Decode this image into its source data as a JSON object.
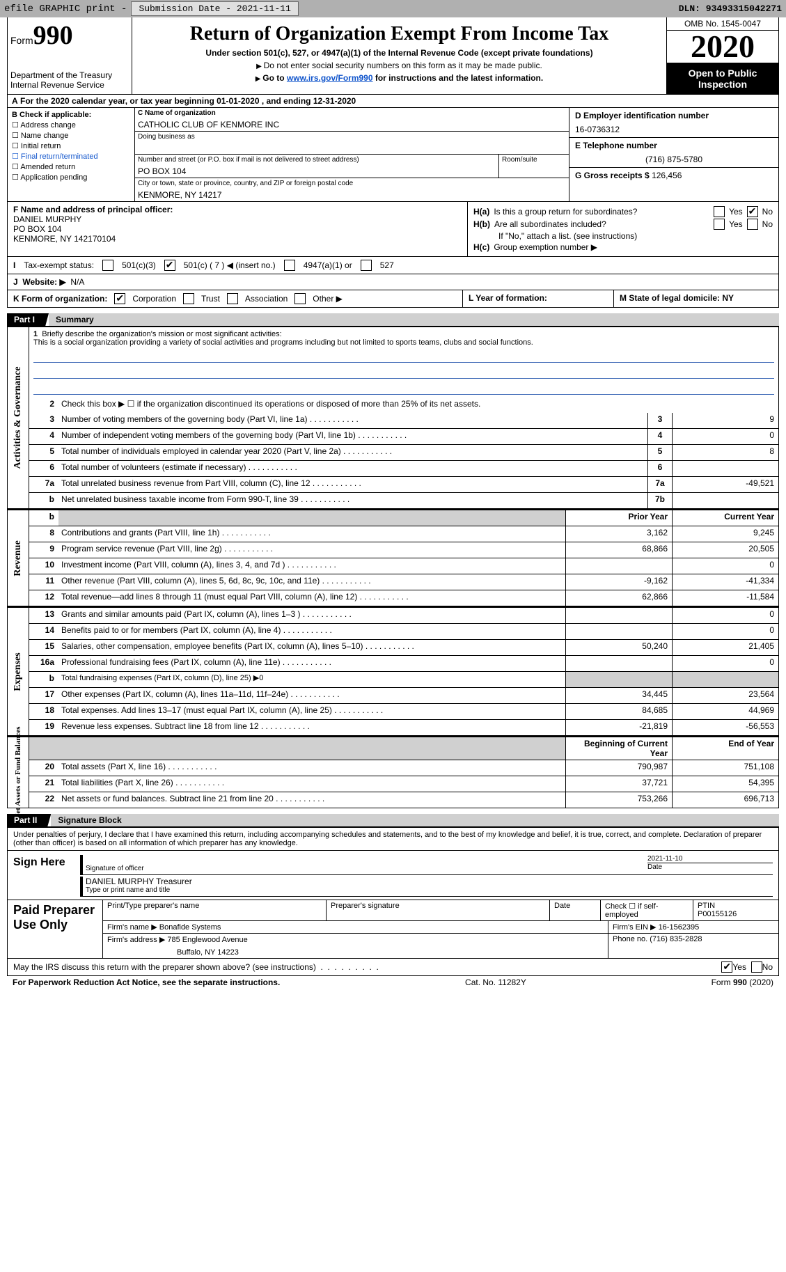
{
  "topbar": {
    "efile": "efile GRAPHIC print - ",
    "submission": "Submission Date - 2021-11-11",
    "dln": "DLN: 93493315042271"
  },
  "header": {
    "form_word": "Form",
    "form_num": "990",
    "title": "Return of Organization Exempt From Income Tax",
    "sub": "Under section 501(c), 527, or 4947(a)(1) of the Internal Revenue Code (except private foundations)",
    "note1": "Do not enter social security numbers on this form as it may be made public.",
    "note2_pre": "Go to ",
    "note2_link": "www.irs.gov/Form990",
    "note2_post": " for instructions and the latest information.",
    "dept": "Department of the Treasury\nInternal Revenue Service",
    "omb": "OMB No. 1545-0047",
    "year": "2020",
    "otp": "Open to Public Inspection"
  },
  "rowA": "For the 2020 calendar year, or tax year beginning 01-01-2020    , and ending 12-31-2020",
  "B": {
    "hdr": "B Check if applicable:",
    "opts": [
      "Address change",
      "Name change",
      "Initial return",
      "Final return/terminated",
      "Amended return",
      "Application pending"
    ]
  },
  "C": {
    "lbl": "C Name of organization",
    "val": "CATHOLIC CLUB OF KENMORE INC",
    "dba": "Doing business as",
    "addr_lbl": "Number and street (or P.O. box if mail is not delivered to street address)",
    "room": "Room/suite",
    "addr": "PO BOX 104",
    "city_lbl": "City or town, state or province, country, and ZIP or foreign postal code",
    "city": "KENMORE, NY  14217"
  },
  "D": {
    "lbl": "D Employer identification number",
    "val": "16-0736312"
  },
  "E": {
    "lbl": "E Telephone number",
    "val": "(716) 875-5780"
  },
  "G": {
    "lbl": "G Gross receipts $",
    "val": "126,456"
  },
  "F": {
    "lbl": "F  Name and address of principal officer:",
    "name": "DANIEL MURPHY",
    "addr1": "PO BOX 104",
    "addr2": "KENMORE, NY  142170104"
  },
  "H": {
    "a": "Is this a group return for subordinates?",
    "b": "Are all subordinates included?",
    "b_note": "If \"No,\" attach a list. (see instructions)",
    "c": "Group exemption number ▶",
    "yes": "Yes",
    "no": "No",
    "Ha": "H(a)",
    "Hb": "H(b)",
    "Hc": "H(c)"
  },
  "I": {
    "lbl": "Tax-exempt status:",
    "o1": "501(c)(3)",
    "o2": "501(c) ( 7 ) ◀ (insert no.)",
    "o3": "4947(a)(1) or",
    "o4": "527"
  },
  "J": {
    "lbl": "Website: ▶",
    "val": "N/A"
  },
  "K": {
    "lbl": "K Form of organization:",
    "o1": "Corporation",
    "o2": "Trust",
    "o3": "Association",
    "o4": "Other ▶"
  },
  "L": {
    "lbl": "L Year of formation:"
  },
  "M": {
    "lbl": "M State of legal domicile: NY"
  },
  "parts": {
    "p1": "Part I",
    "p1t": "Summary",
    "p2": "Part II",
    "p2t": "Signature Block"
  },
  "mission": {
    "num": "1",
    "lbl": "Briefly describe the organization's mission or most significant activities:",
    "txt": "This is a social organization providing a variety of social activities and programs including but not limited to sports teams, clubs and social functions."
  },
  "line2": {
    "num": "2",
    "txt": "Check this box ▶ ☐  if the organization discontinued its operations or disposed of more than 25% of its net assets."
  },
  "sideLabels": {
    "gov": "Activities & Governance",
    "rev": "Revenue",
    "exp": "Expenses",
    "net": "Net Assets or Fund Balances"
  },
  "cols": {
    "prior": "Prior Year",
    "curr": "Current Year",
    "boy": "Beginning of Current Year",
    "eoy": "End of Year"
  },
  "gov": [
    {
      "n": "3",
      "t": "Number of voting members of the governing body (Part VI, line 1a)",
      "b": "3",
      "v": "9"
    },
    {
      "n": "4",
      "t": "Number of independent voting members of the governing body (Part VI, line 1b)",
      "b": "4",
      "v": "0"
    },
    {
      "n": "5",
      "t": "Total number of individuals employed in calendar year 2020 (Part V, line 2a)",
      "b": "5",
      "v": "8"
    },
    {
      "n": "6",
      "t": "Total number of volunteers (estimate if necessary)",
      "b": "6",
      "v": ""
    },
    {
      "n": "7a",
      "t": "Total unrelated business revenue from Part VIII, column (C), line 12",
      "b": "7a",
      "v": "-49,521"
    },
    {
      "n": "b",
      "t": "Net unrelated business taxable income from Form 990-T, line 39",
      "b": "7b",
      "v": ""
    }
  ],
  "rev": [
    {
      "n": "8",
      "t": "Contributions and grants (Part VIII, line 1h)",
      "p": "3,162",
      "c": "9,245"
    },
    {
      "n": "9",
      "t": "Program service revenue (Part VIII, line 2g)",
      "p": "68,866",
      "c": "20,505"
    },
    {
      "n": "10",
      "t": "Investment income (Part VIII, column (A), lines 3, 4, and 7d )",
      "p": "",
      "c": "0"
    },
    {
      "n": "11",
      "t": "Other revenue (Part VIII, column (A), lines 5, 6d, 8c, 9c, 10c, and 11e)",
      "p": "-9,162",
      "c": "-41,334"
    },
    {
      "n": "12",
      "t": "Total revenue—add lines 8 through 11 (must equal Part VIII, column (A), line 12)",
      "p": "62,866",
      "c": "-11,584"
    }
  ],
  "exp": [
    {
      "n": "13",
      "t": "Grants and similar amounts paid (Part IX, column (A), lines 1–3 )",
      "p": "",
      "c": "0"
    },
    {
      "n": "14",
      "t": "Benefits paid to or for members (Part IX, column (A), line 4)",
      "p": "",
      "c": "0"
    },
    {
      "n": "15",
      "t": "Salaries, other compensation, employee benefits (Part IX, column (A), lines 5–10)",
      "p": "50,240",
      "c": "21,405"
    },
    {
      "n": "16a",
      "t": "Professional fundraising fees (Part IX, column (A), line 11e)",
      "p": "",
      "c": "0"
    },
    {
      "n": "b",
      "t": "Total fundraising expenses (Part IX, column (D), line 25) ▶0",
      "shade": true
    },
    {
      "n": "17",
      "t": "Other expenses (Part IX, column (A), lines 11a–11d, 11f–24e)",
      "p": "34,445",
      "c": "23,564"
    },
    {
      "n": "18",
      "t": "Total expenses. Add lines 13–17 (must equal Part IX, column (A), line 25)",
      "p": "84,685",
      "c": "44,969"
    },
    {
      "n": "19",
      "t": "Revenue less expenses. Subtract line 18 from line 12",
      "p": "-21,819",
      "c": "-56,553"
    }
  ],
  "net": [
    {
      "n": "20",
      "t": "Total assets (Part X, line 16)",
      "p": "790,987",
      "c": "751,108"
    },
    {
      "n": "21",
      "t": "Total liabilities (Part X, line 26)",
      "p": "37,721",
      "c": "54,395"
    },
    {
      "n": "22",
      "t": "Net assets or fund balances. Subtract line 21 from line 20",
      "p": "753,266",
      "c": "696,713"
    }
  ],
  "sig": {
    "decl": "Under penalties of perjury, I declare that I have examined this return, including accompanying schedules and statements, and to the best of my knowledge and belief, it is true, correct, and complete. Declaration of preparer (other than officer) is based on all information of which preparer has any knowledge.",
    "sign_here": "Sign Here",
    "sig_officer": "Signature of officer",
    "date_lbl": "Date",
    "date": "2021-11-10",
    "name": "DANIEL MURPHY  Treasurer",
    "name_lbl": "Type or print name and title",
    "paid": "Paid Preparer Use Only",
    "pt_name": "Print/Type preparer's name",
    "pt_sig": "Preparer's signature",
    "pt_date": "Date",
    "pt_check": "Check ☐ if self-employed",
    "ptin_lbl": "PTIN",
    "ptin": "P00155126",
    "firm_name_lbl": "Firm's name    ▶",
    "firm_name": "Bonafide Systems",
    "firm_ein_lbl": "Firm's EIN ▶",
    "firm_ein": "16-1562395",
    "firm_addr_lbl": "Firm's address ▶",
    "firm_addr": "785 Englewood Avenue",
    "firm_city": "Buffalo, NY  14223",
    "phone_lbl": "Phone no.",
    "phone": "(716) 835-2828"
  },
  "may": {
    "txt": "May the IRS discuss this return with the preparer shown above? (see instructions)",
    "yes": "Yes",
    "no": "No"
  },
  "ftr": {
    "l": "For Paperwork Reduction Act Notice, see the separate instructions.",
    "c": "Cat. No. 11282Y",
    "r": "Form 990 (2020)",
    "r_form": "990"
  }
}
